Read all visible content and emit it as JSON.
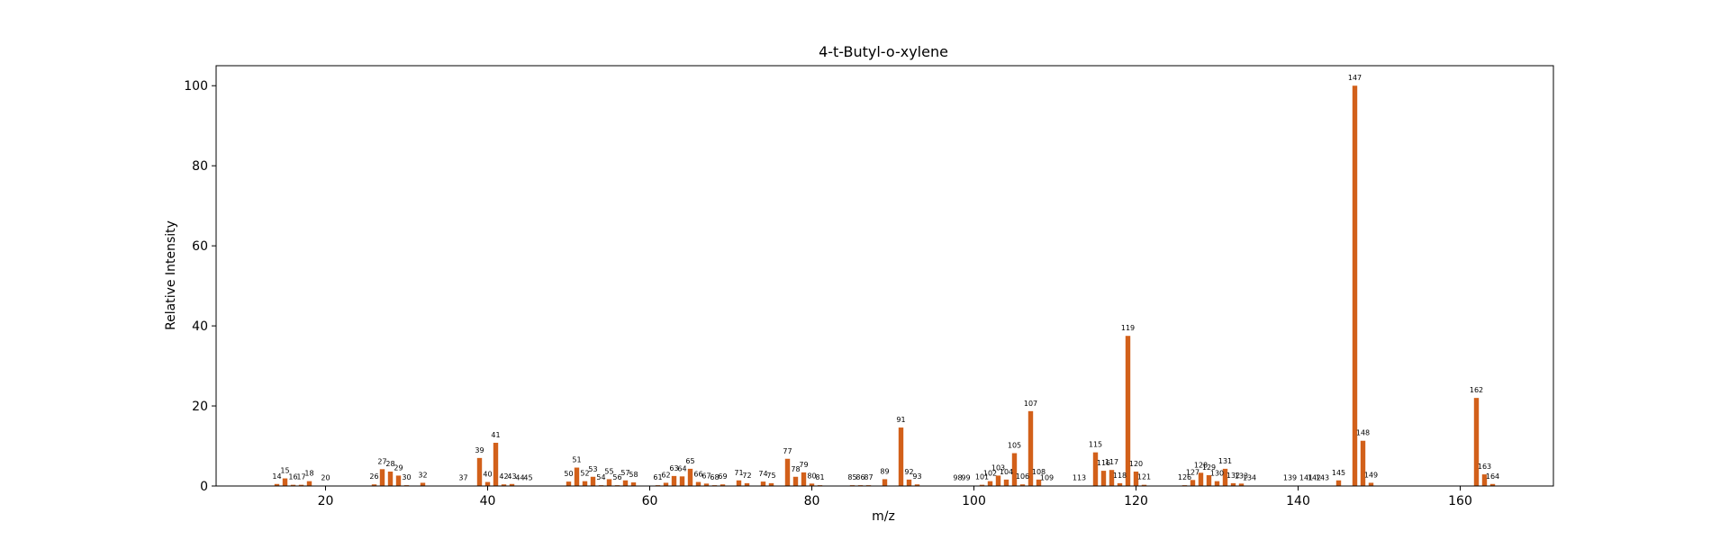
{
  "chart_data": {
    "type": "bar",
    "title": "4-t-Butyl-o-xylene",
    "xlabel": "m/z",
    "ylabel": "Relative Intensity",
    "xlim": [
      6.5,
      171.5
    ],
    "ylim": [
      0,
      105
    ],
    "xticks": [
      20,
      40,
      60,
      80,
      100,
      120,
      140,
      160
    ],
    "yticks": [
      0,
      20,
      40,
      60,
      80,
      100
    ],
    "bar_color": "#d2601a",
    "grid": false,
    "legend": "none",
    "x": [
      14,
      15,
      16,
      17,
      18,
      20,
      26,
      27,
      28,
      29,
      30,
      32,
      37,
      39,
      40,
      41,
      42,
      43,
      44,
      45,
      50,
      51,
      52,
      53,
      54,
      55,
      56,
      57,
      58,
      61,
      62,
      63,
      64,
      65,
      66,
      67,
      68,
      69,
      71,
      72,
      74,
      75,
      77,
      78,
      79,
      80,
      81,
      85,
      86,
      87,
      89,
      91,
      92,
      93,
      98,
      99,
      101,
      102,
      103,
      104,
      105,
      106,
      107,
      108,
      109,
      113,
      115,
      116,
      117,
      118,
      119,
      120,
      121,
      126,
      127,
      128,
      129,
      130,
      131,
      132,
      133,
      134,
      139,
      141,
      142,
      143,
      145,
      147,
      148,
      149,
      162,
      163,
      164
    ],
    "labels": [
      "14",
      "15",
      "16",
      "17",
      "18",
      "20",
      "26",
      "27",
      "28",
      "29",
      "30",
      "32",
      "37",
      "39",
      "40",
      "41",
      "42",
      "43",
      "44",
      "45",
      "50",
      "51",
      "52",
      "53",
      "54",
      "55",
      "56",
      "57",
      "58",
      "61",
      "62",
      "63",
      "64",
      "65",
      "66",
      "67",
      "68",
      "69",
      "71",
      "72",
      "74",
      "75",
      "77",
      "78",
      "79",
      "80",
      "81",
      "85",
      "86",
      "87",
      "89",
      "91",
      "92",
      "93",
      "98",
      "99",
      "101",
      "102",
      "103",
      "104",
      "105",
      "106",
      "107",
      "108",
      "109",
      "113",
      "115",
      "116",
      "117",
      "118",
      "119",
      "120",
      "121",
      "126",
      "127",
      "128",
      "129",
      "130",
      "131",
      "132",
      "133",
      "134",
      "139",
      "141",
      "142",
      "143",
      "145",
      "147",
      "148",
      "149",
      "162",
      "163",
      "164"
    ],
    "values": [
      0.5,
      1.9,
      0.3,
      0.3,
      1.2,
      0.1,
      0.4,
      4.2,
      3.6,
      2.6,
      0.2,
      0.8,
      0.1,
      7.0,
      1.0,
      10.8,
      0.4,
      0.5,
      0.1,
      0.1,
      1.1,
      4.6,
      1.2,
      2.3,
      0.2,
      1.7,
      0.2,
      1.4,
      0.9,
      0.2,
      0.8,
      2.5,
      2.4,
      4.3,
      1.0,
      0.6,
      0.2,
      0.4,
      1.4,
      0.7,
      1.1,
      0.7,
      6.8,
      2.3,
      3.4,
      0.6,
      0.2,
      0.2,
      0.2,
      0.2,
      1.7,
      14.6,
      1.6,
      0.4,
      0.1,
      0.1,
      0.3,
      1.2,
      2.6,
      1.6,
      8.2,
      0.4,
      18.7,
      1.6,
      0.1,
      0.1,
      8.4,
      3.8,
      4.0,
      0.7,
      37.5,
      3.6,
      0.3,
      0.2,
      1.5,
      3.3,
      2.7,
      1.2,
      4.3,
      0.7,
      0.6,
      0.1,
      0.1,
      0.1,
      0.1,
      0.1,
      1.4,
      100,
      11.3,
      0.8,
      22.0,
      2.9,
      0.5
    ]
  }
}
